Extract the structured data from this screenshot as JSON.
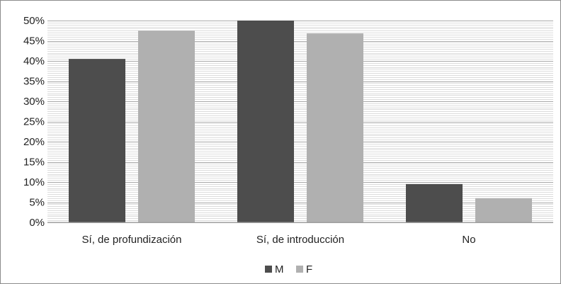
{
  "chart_data": {
    "type": "bar",
    "categories": [
      "Sí, de profundización",
      "Sí, de introducción",
      "No"
    ],
    "series": [
      {
        "name": "M",
        "values": [
          40.5,
          50.0,
          9.5
        ],
        "color": "#4d4d4d"
      },
      {
        "name": "F",
        "values": [
          47.5,
          46.8,
          6.0
        ],
        "color": "#b0b0b0"
      }
    ],
    "y_ticks": [
      "0%",
      "5%",
      "10%",
      "15%",
      "20%",
      "25%",
      "30%",
      "35%",
      "40%",
      "45%",
      "50%"
    ],
    "ylim": [
      0,
      50
    ],
    "grid": true,
    "legend_placement": "bottom-center"
  }
}
